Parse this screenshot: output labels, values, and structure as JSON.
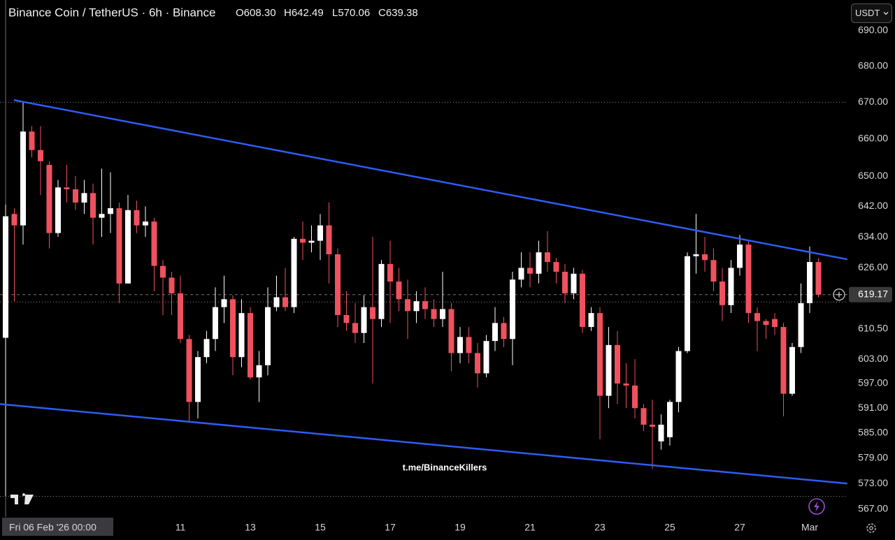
{
  "chart_data": {
    "type": "candlestick",
    "title": "Binance Coin / TetherUS · 6h · Binance",
    "ohlc_legend": [
      {
        "key": "O",
        "label": "608.30"
      },
      {
        "key": "H",
        "label": "642.49"
      },
      {
        "key": "L",
        "label": "570.06"
      },
      {
        "key": "C",
        "label": "639.38"
      }
    ],
    "currency": "USDT",
    "watermark": "t.me/BinanceKillers",
    "log_scale": true,
    "grid": false,
    "up_color": "#ffffff",
    "down_color": "#f0515e",
    "categories": [
      "Fri 06 Feb '26 00:00",
      null,
      null,
      null,
      null,
      null,
      null,
      null,
      null,
      null,
      null,
      null,
      null,
      null,
      null,
      null,
      null,
      null,
      null,
      null,
      "11",
      null,
      null,
      null,
      null,
      null,
      null,
      null,
      "13",
      null,
      null,
      null,
      null,
      null,
      null,
      null,
      "15",
      null,
      null,
      null,
      null,
      null,
      null,
      null,
      "17",
      null,
      null,
      null,
      null,
      null,
      null,
      null,
      "19",
      null,
      null,
      null,
      null,
      null,
      null,
      null,
      "21",
      null,
      null,
      null,
      null,
      null,
      null,
      null,
      "23",
      null,
      null,
      null,
      null,
      null,
      null,
      null,
      "25",
      null,
      null,
      null,
      null,
      null,
      null,
      null,
      "27",
      null,
      null,
      null,
      null,
      null,
      null,
      null,
      "Mar",
      null
    ],
    "open": [
      608.3,
      640,
      637,
      662,
      657,
      653,
      635,
      647,
      646.5,
      643,
      645.5,
      639,
      640,
      641.5,
      622,
      641,
      637,
      638,
      626.5,
      623.5,
      619.5,
      608,
      592.5,
      603.5,
      608,
      616,
      618,
      603.5,
      614.5,
      598.5,
      601.5,
      616,
      618.5,
      616,
      633.5,
      632.5,
      633,
      637,
      629.5,
      614,
      612,
      609.5,
      616,
      613,
      627,
      622.5,
      618,
      615,
      617.5,
      615.5,
      613,
      615.5,
      604.5,
      608.5,
      604.5,
      599.5,
      607.5,
      612,
      608,
      623,
      626,
      624.5,
      630,
      627.5,
      625,
      619.5,
      624.5,
      611,
      614.5,
      594,
      606.5,
      597,
      596.5,
      591,
      587,
      583,
      584,
      592.5,
      605,
      629,
      629.5,
      628,
      622.5,
      616.5,
      626,
      632,
      614.5,
      612.5,
      613,
      611,
      594.5,
      606,
      617,
      627.5
    ],
    "high": [
      642.49,
      641.5,
      670,
      663.5,
      663.5,
      654,
      649,
      653,
      650,
      649,
      648,
      652,
      651,
      643,
      645,
      643.5,
      642,
      639,
      628,
      625,
      624,
      609,
      605,
      610,
      621,
      624,
      619,
      618,
      616,
      605,
      621,
      624,
      626,
      634,
      638,
      637,
      640,
      643,
      631,
      620,
      617,
      619,
      634,
      628,
      633,
      626,
      623,
      620,
      621,
      618,
      625,
      617,
      611,
      611,
      607,
      609,
      616,
      613.5,
      625,
      630,
      630,
      633,
      635.5,
      628.5,
      627,
      626,
      625.5,
      616,
      616,
      611,
      610,
      602,
      603,
      592,
      593,
      589.5,
      593,
      606,
      630,
      640,
      634,
      631,
      626,
      628,
      634.5,
      633,
      616,
      613,
      614.5,
      612,
      607,
      622,
      631.5,
      628.5
    ],
    "low": [
      570.06,
      617.5,
      632,
      655,
      645,
      631,
      634,
      643,
      641,
      640,
      632,
      634,
      635,
      617,
      622,
      635,
      634,
      620,
      614,
      614,
      607,
      587.5,
      588.5,
      602,
      605,
      612,
      599,
      601,
      598,
      592.5,
      599,
      615,
      615,
      614.5,
      628,
      630,
      628,
      622,
      611,
      610,
      607,
      607,
      597,
      611,
      612,
      615,
      608,
      612,
      613,
      611,
      611,
      600,
      602,
      602,
      596,
      598.5,
      605,
      606,
      601.5,
      621,
      621,
      622,
      625,
      622,
      617,
      618,
      609.5,
      610,
      583.5,
      591,
      592,
      591,
      588.5,
      585.5,
      576.5,
      581,
      582,
      590,
      604.5,
      624.5,
      625,
      620,
      612.5,
      614.5,
      624,
      612,
      605,
      608,
      609,
      589,
      594,
      604.5,
      614.5,
      618.5
    ],
    "close": [
      639.38,
      637,
      662,
      657,
      654,
      635,
      647,
      646.5,
      643,
      645.5,
      639,
      640,
      641.5,
      622,
      641,
      637,
      638,
      626.5,
      623.5,
      619.5,
      608,
      592.5,
      603.5,
      608,
      616,
      618,
      603.5,
      614.5,
      598.5,
      601.5,
      616,
      618.5,
      616,
      633.5,
      632.5,
      633,
      637,
      629.5,
      614,
      612,
      609.5,
      616,
      613,
      627,
      622.5,
      618,
      615,
      617.5,
      615.5,
      613,
      615.5,
      604.5,
      608.5,
      604.5,
      599.5,
      607.5,
      612,
      608,
      623,
      626,
      624.5,
      630,
      627.5,
      625,
      619.5,
      624.5,
      611,
      614.5,
      594,
      606.5,
      597,
      596.5,
      591,
      587,
      586.5,
      587,
      592.5,
      605,
      629,
      629.5,
      628,
      622.5,
      616.5,
      626,
      632,
      614.5,
      612.5,
      611.5,
      611,
      594.5,
      606,
      617,
      627.5,
      619.17
    ],
    "last_price": 619.17,
    "ylim": [
      565.2,
      698.7
    ],
    "yticks": [
      {
        "value": 690,
        "label": "690.00"
      },
      {
        "value": 680,
        "label": "680.00"
      },
      {
        "value": 670,
        "label": "670.00"
      },
      {
        "value": 660,
        "label": "660.00"
      },
      {
        "value": 650,
        "label": "650.00"
      },
      {
        "value": 642,
        "label": "642.00"
      },
      {
        "value": 634,
        "label": "634.00"
      },
      {
        "value": 626,
        "label": "626.00"
      },
      {
        "value": 610.5,
        "label": "610.50"
      },
      {
        "value": 603,
        "label": "603.00"
      },
      {
        "value": 597,
        "label": "597.00"
      },
      {
        "value": 591,
        "label": "591.00"
      },
      {
        "value": 585,
        "label": "585.00"
      },
      {
        "value": 579,
        "label": "579.00"
      },
      {
        "value": 573,
        "label": "573.00"
      },
      {
        "value": 567,
        "label": "567.00"
      }
    ],
    "trendlines": [
      {
        "color": "#2f5cf5",
        "x": [
          0.96,
          96.3
        ],
        "y": [
          670.6,
          628.2
        ]
      },
      {
        "color": "#2f5cf5",
        "x": [
          -0.64,
          96.3
        ],
        "y": [
          592,
          573
        ]
      }
    ],
    "hlines": [
      670,
      617.3,
      570
    ]
  }
}
